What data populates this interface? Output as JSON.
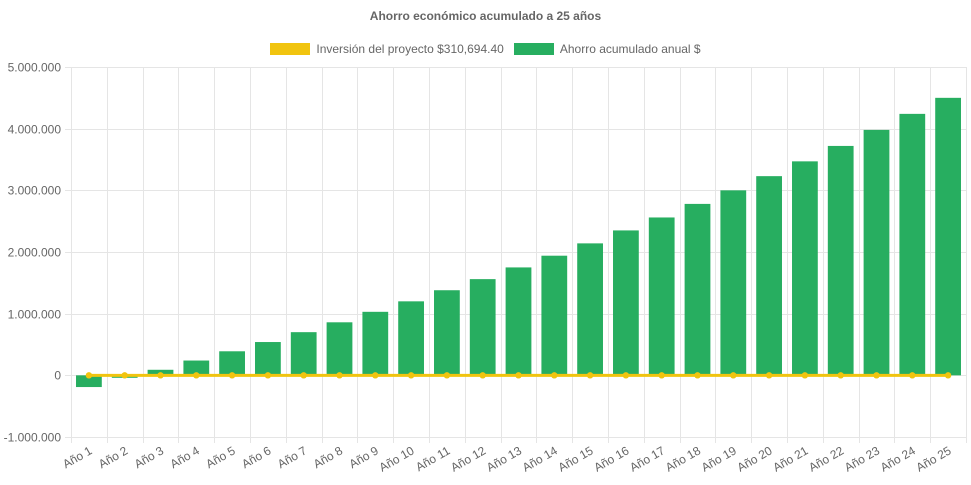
{
  "chart_data": {
    "type": "bar",
    "title": "Ahorro económico acumulado a 25 años",
    "categories": [
      "Año 1",
      "Año 2",
      "Año 3",
      "Año 4",
      "Año 5",
      "Año 6",
      "Año 7",
      "Año 8",
      "Año 9",
      "Año 10",
      "Año 11",
      "Año 12",
      "Año 13",
      "Año 14",
      "Año 15",
      "Año 16",
      "Año 17",
      "Año 18",
      "Año 19",
      "Año 20",
      "Año 21",
      "Año 22",
      "Año 23",
      "Año 24",
      "Año 25"
    ],
    "series": [
      {
        "name": "Ahorro acumulado anual $",
        "type": "bar",
        "color": "#27ae60",
        "values": [
          -190000,
          -40000,
          90000,
          240000,
          390000,
          540000,
          700000,
          860000,
          1030000,
          1200000,
          1380000,
          1560000,
          1750000,
          1940000,
          2140000,
          2350000,
          2560000,
          2780000,
          3000000,
          3230000,
          3470000,
          3720000,
          3980000,
          4240000,
          4500000
        ]
      },
      {
        "name": "Inversión del proyecto $310,694.40",
        "type": "line",
        "color": "#f1c40f",
        "values": [
          0,
          0,
          0,
          0,
          0,
          0,
          0,
          0,
          0,
          0,
          0,
          0,
          0,
          0,
          0,
          0,
          0,
          0,
          0,
          0,
          0,
          0,
          0,
          0,
          0
        ]
      }
    ],
    "yticks": [
      "5.000.000",
      "4.000.000",
      "3.000.000",
      "2.000.000",
      "1.000.000",
      "0",
      "-1.000.000"
    ],
    "ylim": [
      -1000000,
      5000000
    ],
    "grid": true,
    "legend": "top-center"
  }
}
